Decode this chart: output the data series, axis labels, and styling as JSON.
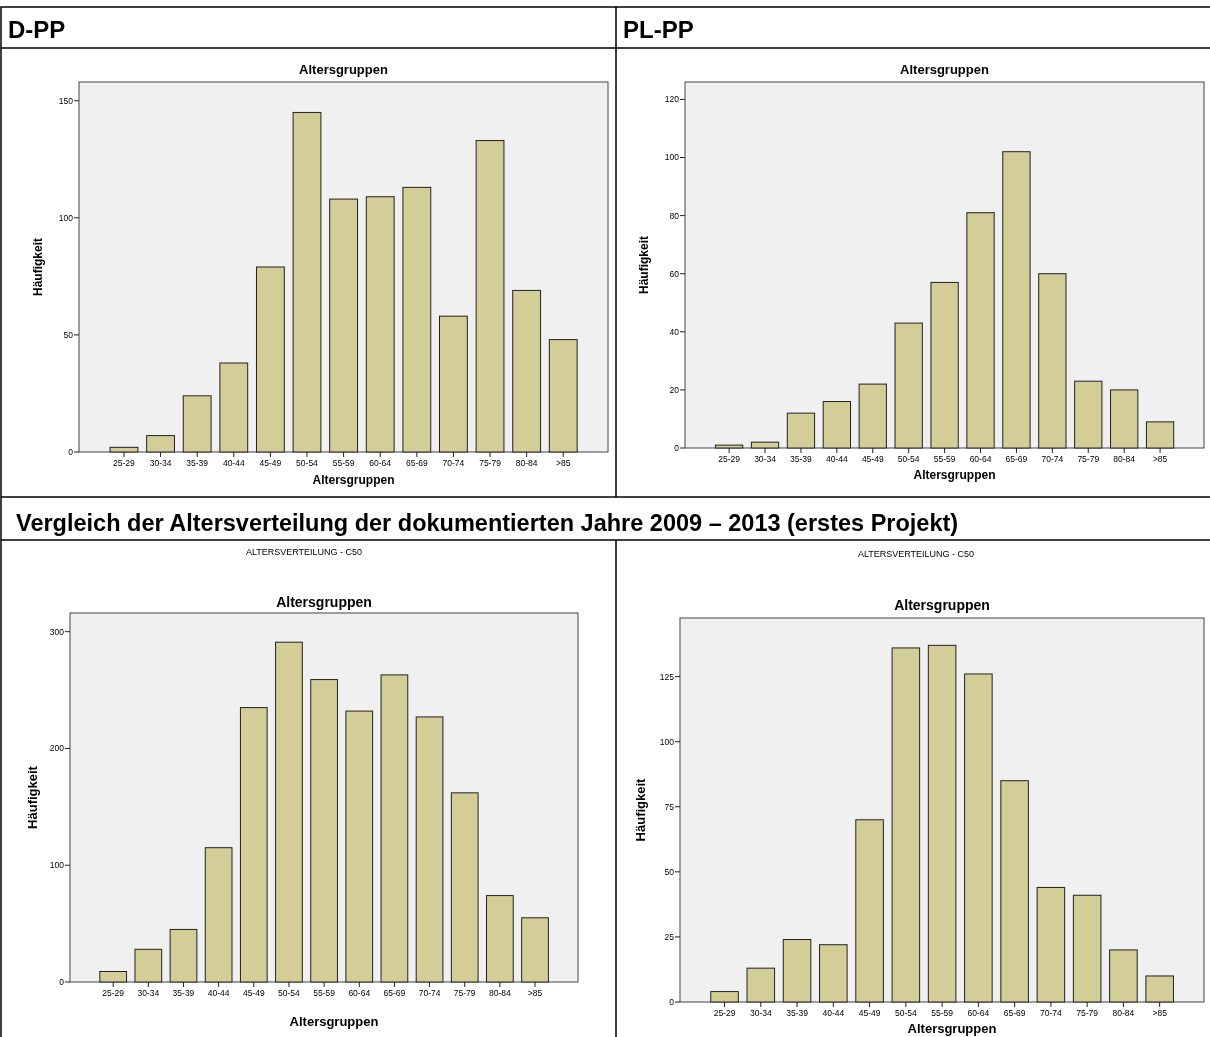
{
  "chart_data": [
    {
      "type": "bar",
      "subtitle": "D-PP",
      "title": "Altersgruppen",
      "xlabel": "Altersgruppen",
      "ylabel": "Häufigkeit",
      "categories": [
        "25-29",
        "30-34",
        "35-39",
        "40-44",
        "45-49",
        "50-54",
        "55-59",
        "60-64",
        "65-69",
        "70-74",
        "75-79",
        "80-84",
        ">85"
      ],
      "values": [
        2,
        7,
        24,
        38,
        79,
        145,
        108,
        109,
        113,
        58,
        133,
        69,
        48
      ],
      "color": "#d3ce97",
      "ylim": [
        0,
        158
      ],
      "yticks": [
        0,
        50,
        100,
        150
      ]
    },
    {
      "type": "bar",
      "subtitle": "PL-PP",
      "title": "Altersgruppen",
      "xlabel": "Altersgruppen",
      "ylabel": "Häufigkeit",
      "categories": [
        "25-29",
        "30-34",
        "35-39",
        "40-44",
        "45-49",
        "50-54",
        "55-59",
        "60-64",
        "65-69",
        "70-74",
        "75-79",
        "80-84",
        ">85"
      ],
      "values": [
        1,
        2,
        12,
        16,
        22,
        43,
        57,
        81,
        102,
        60,
        23,
        20,
        9
      ],
      "color": "#d3ce97",
      "ylim": [
        0,
        126
      ],
      "yticks": [
        0,
        20,
        40,
        60,
        80,
        100,
        120
      ]
    },
    {
      "type": "bar",
      "annotations": [
        "Vergleich der Altersverteilung der dokumentierten Jahre 2009 – 2013 (erstes Projekt)"
      ],
      "subtitle": "ALTERSVERTEILUNG - C50",
      "title": "Altersgruppen",
      "xlabel": "Altersgruppen",
      "ylabel": "Häufigkeit",
      "categories": [
        "25-29",
        "30-34",
        "35-39",
        "40-44",
        "45-49",
        "50-54",
        "55-59",
        "60-64",
        "65-69",
        "70-74",
        "75-79",
        "80-84",
        ">85"
      ],
      "values": [
        9,
        28,
        45,
        115,
        235,
        291,
        259,
        232,
        263,
        227,
        162,
        74,
        55
      ],
      "color": "#d3ce97",
      "ylim": [
        0,
        316
      ],
      "yticks": [
        0,
        100,
        200,
        300
      ]
    },
    {
      "type": "bar",
      "subtitle": "ALTERSVERTEILUNG - C50",
      "title": "Altersgruppen",
      "xlabel": "Altersgruppen",
      "ylabel": "Häufigkeit",
      "categories": [
        "25-29",
        "30-34",
        "35-39",
        "40-44",
        "45-49",
        "50-54",
        "55-59",
        "60-64",
        "65-69",
        "70-74",
        "75-79",
        "80-84",
        ">85"
      ],
      "values": [
        4,
        13,
        24,
        22,
        70,
        136,
        137,
        126,
        85,
        44,
        41,
        20,
        10
      ],
      "color": "#d3ce97",
      "ylim": [
        0,
        147.5
      ],
      "yticks": [
        0,
        25,
        50,
        75,
        100,
        125
      ]
    }
  ]
}
